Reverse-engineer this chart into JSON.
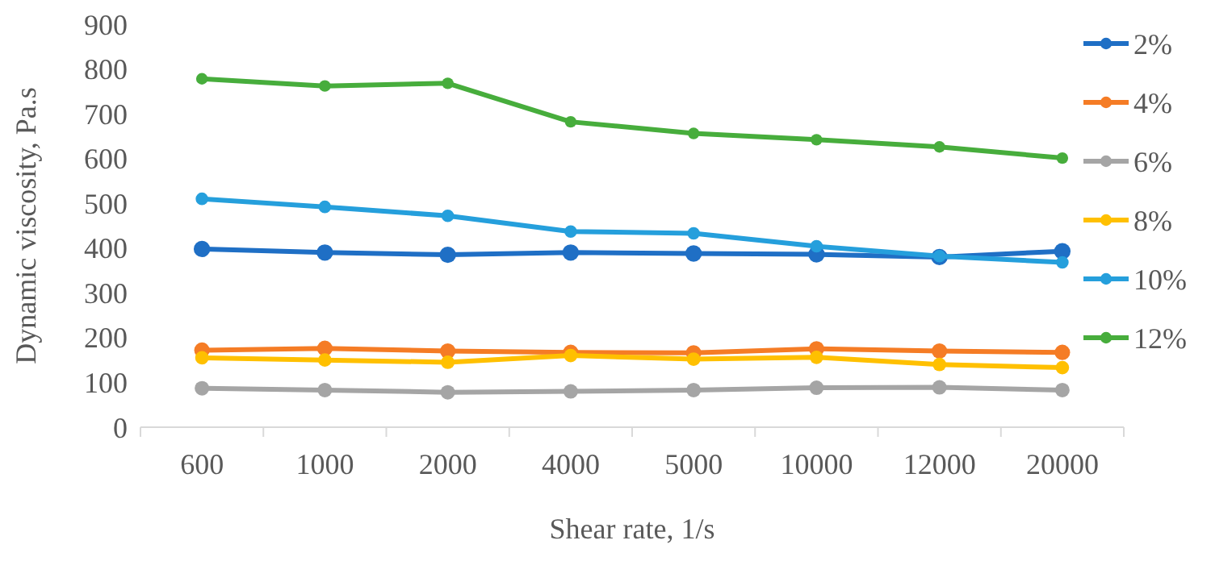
{
  "chart_data": {
    "type": "line",
    "xlabel": "Shear rate, 1/s",
    "ylabel": "Dynamic viscosity, Pa.s",
    "categories": [
      "600",
      "1000",
      "2000",
      "4000",
      "5000",
      "10000",
      "12000",
      "20000"
    ],
    "ylim": [
      0,
      900
    ],
    "yticks": [
      0,
      100,
      200,
      300,
      400,
      500,
      600,
      700,
      800,
      900
    ],
    "grid": false,
    "legend": "right",
    "marker": "circle",
    "line_style": "solid",
    "series": [
      {
        "name": "2%",
        "color": "#1f6fc5",
        "values": [
          398,
          390,
          385,
          390,
          388,
          386,
          380,
          393
        ]
      },
      {
        "name": "4%",
        "color": "#f57c25",
        "values": [
          172,
          176,
          170,
          167,
          166,
          175,
          170,
          167
        ]
      },
      {
        "name": "6%",
        "color": "#a5a5a5",
        "values": [
          87,
          83,
          78,
          80,
          83,
          88,
          89,
          83
        ]
      },
      {
        "name": "8%",
        "color": "#ffc000",
        "values": [
          155,
          150,
          145,
          160,
          152,
          156,
          140,
          133
        ]
      },
      {
        "name": "10%",
        "color": "#259fdc",
        "values": [
          510,
          492,
          472,
          437,
          433,
          404,
          382,
          368
        ]
      },
      {
        "name": "12%",
        "color": "#47ad3c",
        "values": [
          778,
          762,
          768,
          682,
          656,
          642,
          626,
          601
        ]
      }
    ]
  }
}
